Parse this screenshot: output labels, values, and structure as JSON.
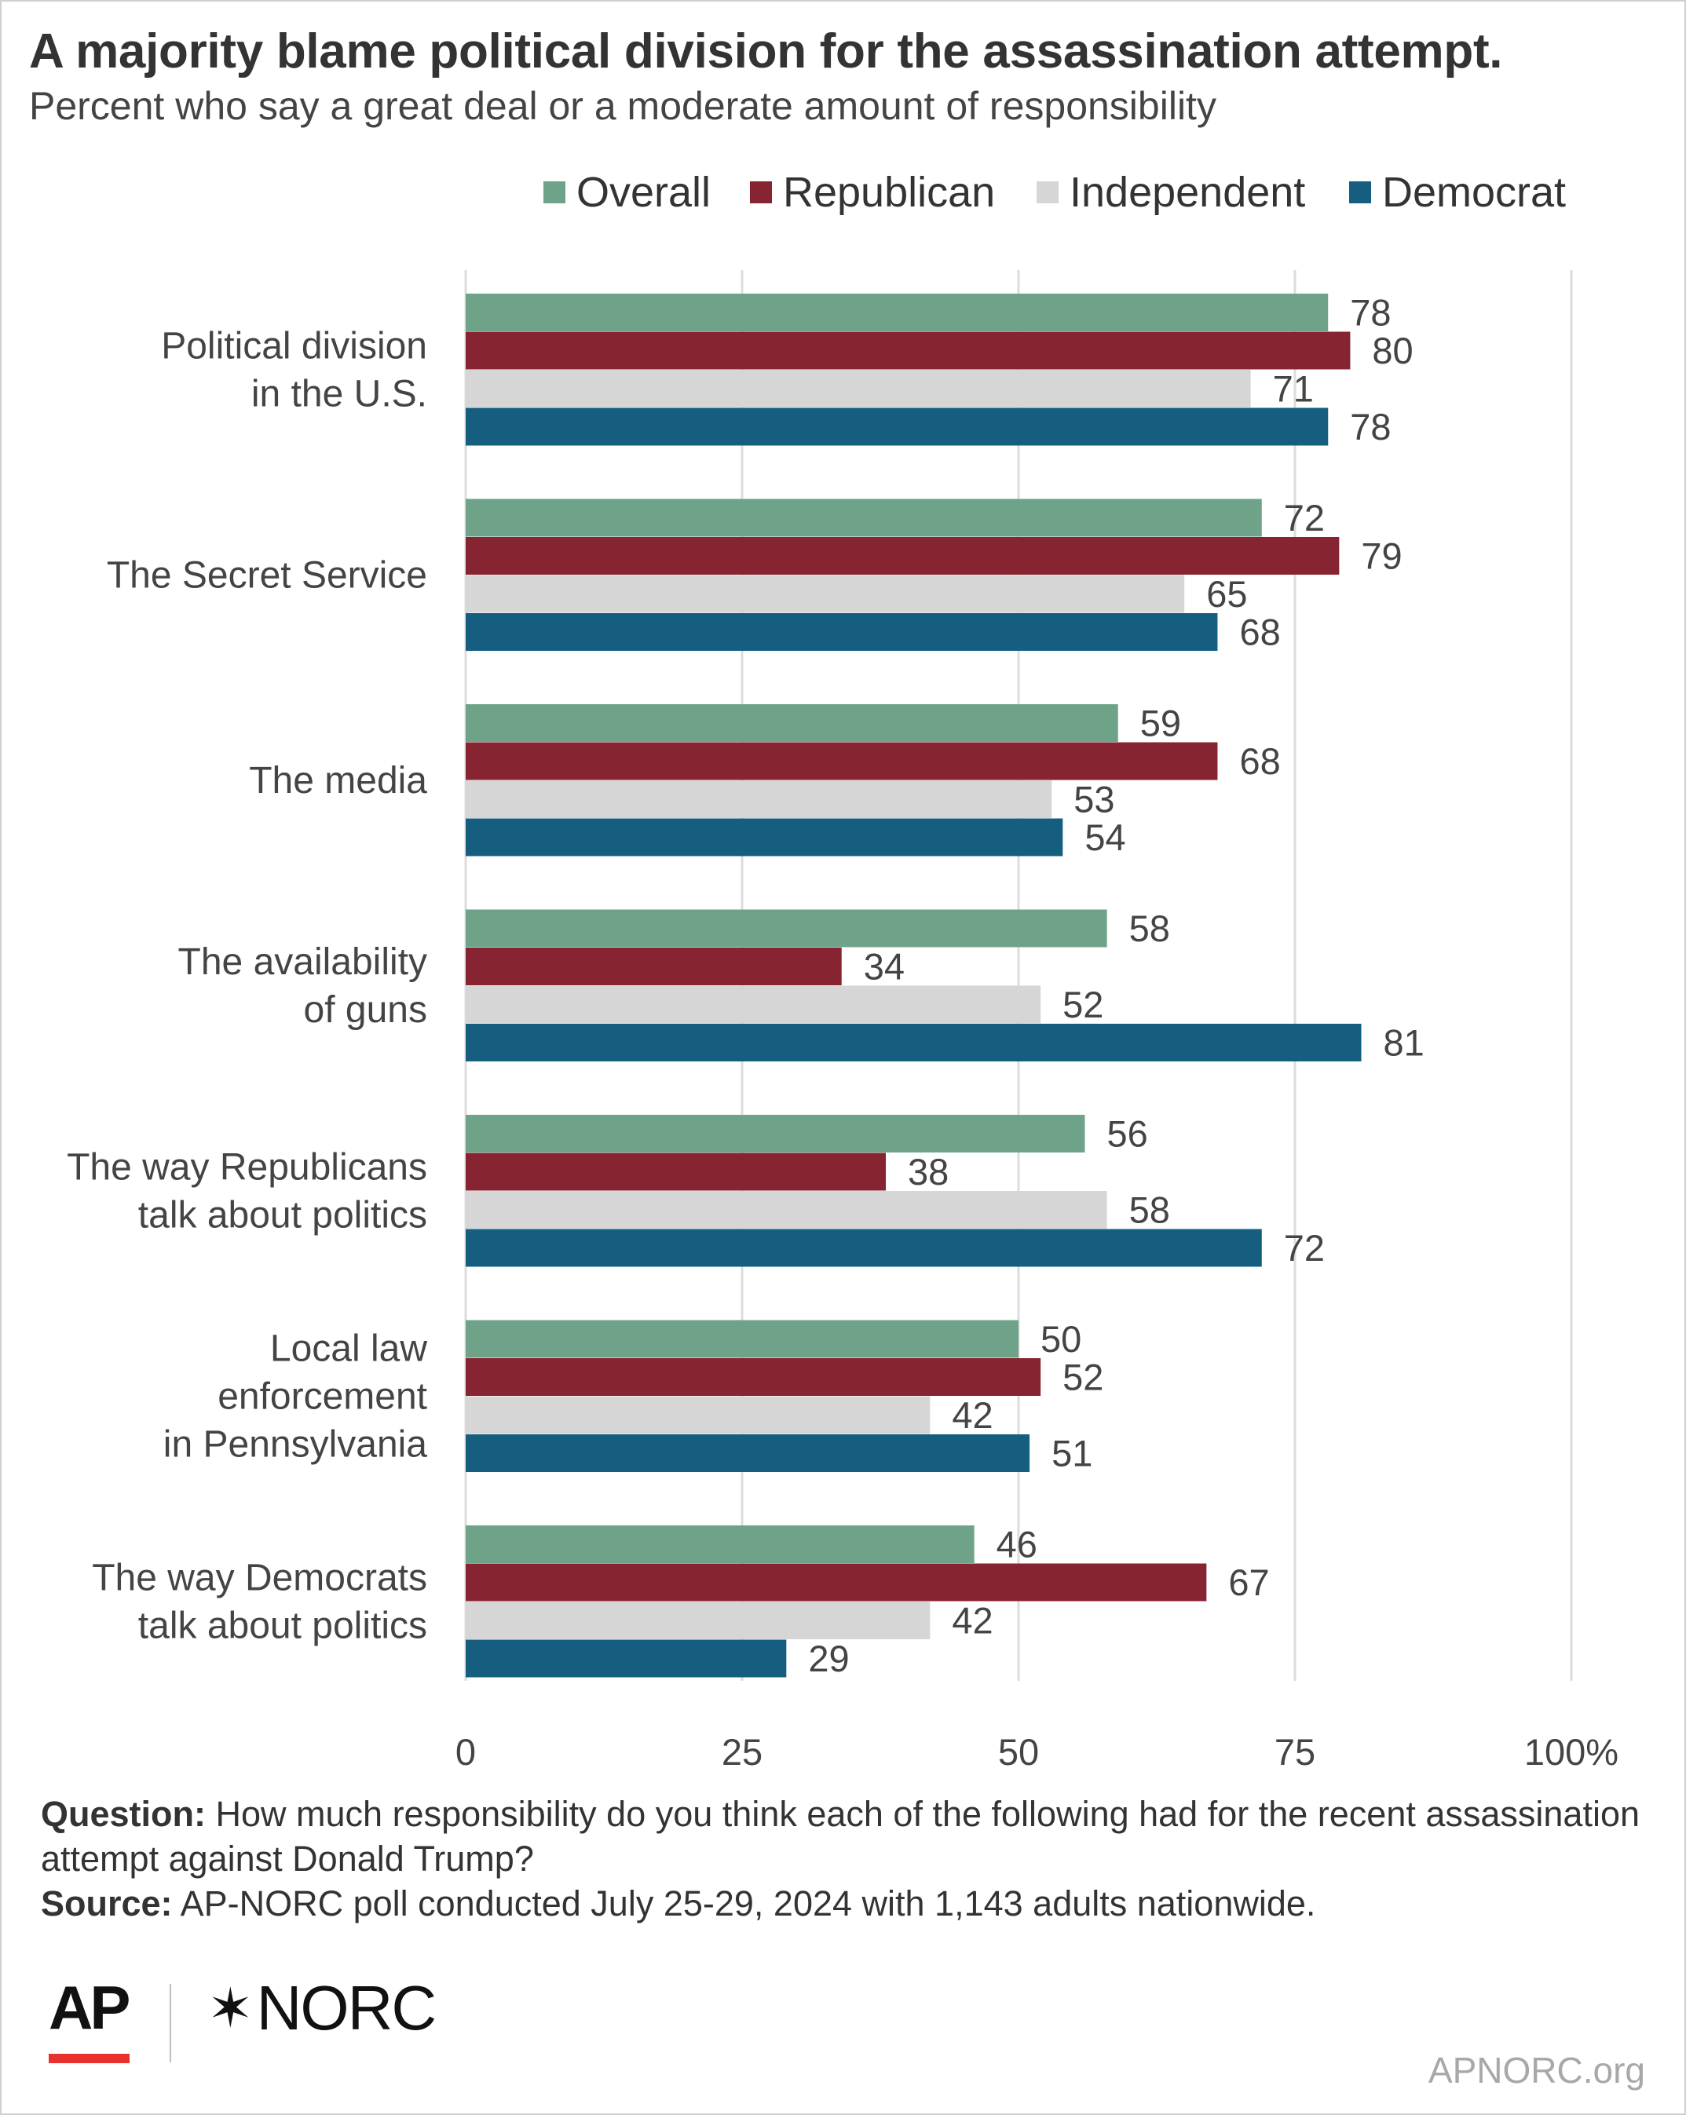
{
  "header": {
    "title": "A majority blame political division for the assassination attempt.",
    "subtitle": "Percent who say a great deal or a moderate amount of responsibility"
  },
  "legend": [
    {
      "label": "Overall",
      "color": "#6fa389"
    },
    {
      "label": "Republican",
      "color": "#862432"
    },
    {
      "label": "Independent",
      "color": "#d6d6d6"
    },
    {
      "label": "Democrat",
      "color": "#165e80"
    }
  ],
  "chart_data": {
    "type": "bar",
    "orientation": "horizontal",
    "title": "A majority blame political division for the assassination attempt.",
    "subtitle": "Percent who say a great deal or a moderate amount of responsibility",
    "categories": [
      [
        "Political division",
        "in the U.S."
      ],
      [
        "The Secret Service"
      ],
      [
        "The media"
      ],
      [
        "The availability",
        "of guns"
      ],
      [
        "The way Republicans",
        "talk about politics"
      ],
      [
        "Local law",
        "enforcement",
        "in Pennsylvania"
      ],
      [
        "The way Democrats",
        "talk about politics"
      ]
    ],
    "series": [
      {
        "name": "Overall",
        "color": "#6fa389",
        "values": [
          78,
          72,
          59,
          58,
          56,
          50,
          46
        ]
      },
      {
        "name": "Republican",
        "color": "#862432",
        "values": [
          80,
          79,
          68,
          34,
          38,
          52,
          67
        ]
      },
      {
        "name": "Independent",
        "color": "#d6d6d6",
        "values": [
          71,
          65,
          53,
          52,
          58,
          42,
          42
        ]
      },
      {
        "name": "Democrat",
        "color": "#165e80",
        "values": [
          78,
          68,
          54,
          81,
          72,
          51,
          29
        ]
      }
    ],
    "xlim": [
      0,
      100
    ],
    "xticks": [
      "0",
      "25",
      "50",
      "75",
      "100%"
    ],
    "grid": true,
    "legend_position": "top-right"
  },
  "notes": {
    "question_label": "Question:",
    "question_text": " How much responsibility do you think each of the following had for the recent assassination attempt against Donald Trump?",
    "source_label": "Source:",
    "source_text": " AP-NORC poll conducted July 25-29, 2024 with 1,143 adults nationwide."
  },
  "footer": {
    "logo_ap": "AP",
    "logo_norc_mark": "✶",
    "logo_norc": "NORC",
    "site": "APNORC.org"
  }
}
